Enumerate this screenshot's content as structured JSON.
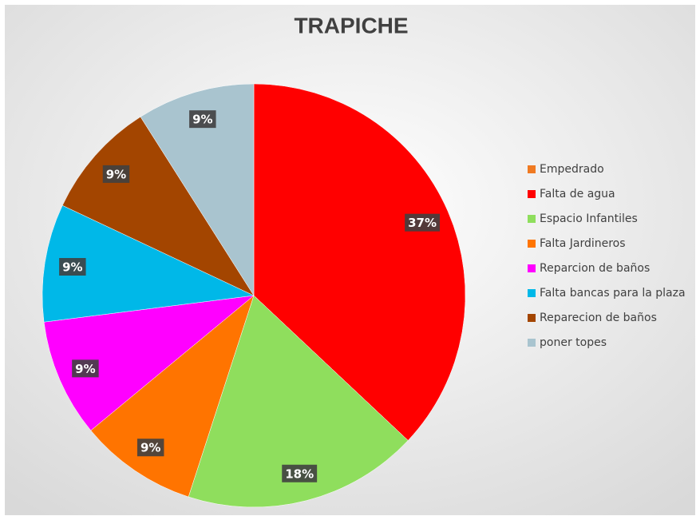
{
  "chart_data": {
    "type": "pie",
    "title": "TRAPICHE",
    "categories": [
      "Empedrado",
      "Falta de agua",
      "Espacio Infantiles",
      "Falta Jardineros",
      "Reparcion de baños",
      "Falta bancas para la plaza",
      "Reparecion de baños",
      "poner topes"
    ],
    "values": [
      0,
      37,
      18,
      9,
      9,
      9,
      9,
      9
    ],
    "value_labels": [
      null,
      "37%",
      "18%",
      "9%",
      "9%",
      "9%",
      "9%",
      "9%"
    ],
    "colors": [
      "#f07a22",
      "#ff0000",
      "#8fde5d",
      "#ff7400",
      "#ff00ff",
      "#00b8e8",
      "#a34500",
      "#a9c4cf"
    ],
    "legend": "right"
  }
}
